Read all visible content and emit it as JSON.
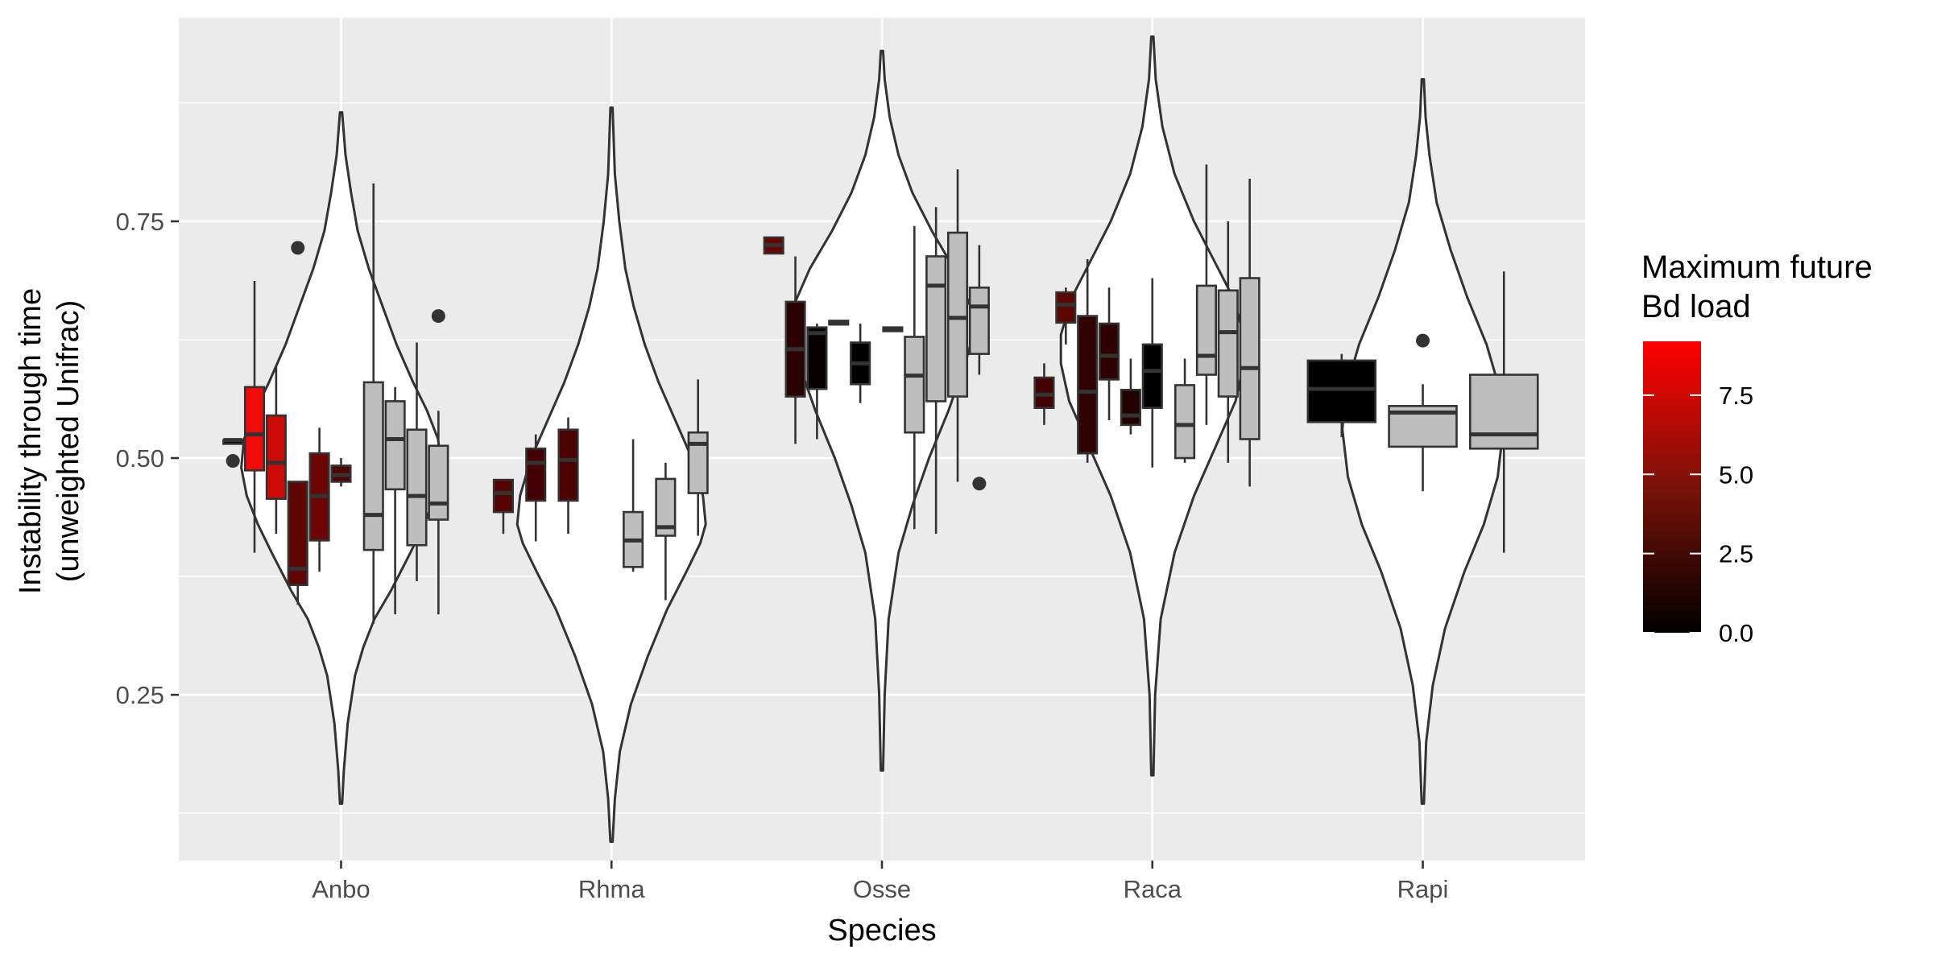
{
  "chart_data": {
    "type": "boxplot-violin",
    "xlabel": "Species",
    "ylabel_lines": [
      "Instability through time",
      "(unweighted Unifrac)"
    ],
    "ylim": [
      0.075,
      0.965
    ],
    "y_ticks": [
      0.25,
      0.5,
      0.75
    ],
    "y_tick_labels": [
      "0.25",
      "0.50",
      "0.75"
    ],
    "y_minor_ticks": [
      0.125,
      0.375,
      0.625,
      0.875
    ],
    "categories": [
      "Anbo",
      "Rhma",
      "Osse",
      "Raca",
      "Rapi"
    ],
    "violins": [
      {
        "species": "Anbo",
        "min": 0.135,
        "max": 0.865,
        "profile": [
          [
            0.135,
            0.002
          ],
          [
            0.17,
            0.005
          ],
          [
            0.22,
            0.012
          ],
          [
            0.27,
            0.025
          ],
          [
            0.3,
            0.04
          ],
          [
            0.33,
            0.06
          ],
          [
            0.36,
            0.09
          ],
          [
            0.4,
            0.125
          ],
          [
            0.43,
            0.15
          ],
          [
            0.46,
            0.17
          ],
          [
            0.49,
            0.18
          ],
          [
            0.52,
            0.175
          ],
          [
            0.55,
            0.155
          ],
          [
            0.58,
            0.13
          ],
          [
            0.62,
            0.1
          ],
          [
            0.66,
            0.075
          ],
          [
            0.7,
            0.05
          ],
          [
            0.74,
            0.03
          ],
          [
            0.78,
            0.018
          ],
          [
            0.82,
            0.008
          ],
          [
            0.865,
            0.002
          ]
        ]
      },
      {
        "species": "Rhma",
        "min": 0.095,
        "max": 0.87,
        "profile": [
          [
            0.095,
            0.002
          ],
          [
            0.14,
            0.006
          ],
          [
            0.19,
            0.015
          ],
          [
            0.24,
            0.035
          ],
          [
            0.29,
            0.065
          ],
          [
            0.34,
            0.1
          ],
          [
            0.38,
            0.135
          ],
          [
            0.41,
            0.16
          ],
          [
            0.43,
            0.17
          ],
          [
            0.46,
            0.165
          ],
          [
            0.5,
            0.145
          ],
          [
            0.54,
            0.115
          ],
          [
            0.58,
            0.085
          ],
          [
            0.62,
            0.06
          ],
          [
            0.66,
            0.04
          ],
          [
            0.7,
            0.025
          ],
          [
            0.75,
            0.014
          ],
          [
            0.8,
            0.006
          ],
          [
            0.87,
            0.002
          ]
        ]
      },
      {
        "species": "Osse",
        "min": 0.17,
        "max": 0.93,
        "profile": [
          [
            0.17,
            0.002
          ],
          [
            0.25,
            0.005
          ],
          [
            0.33,
            0.012
          ],
          [
            0.4,
            0.03
          ],
          [
            0.45,
            0.055
          ],
          [
            0.5,
            0.085
          ],
          [
            0.55,
            0.12
          ],
          [
            0.6,
            0.15
          ],
          [
            0.63,
            0.165
          ],
          [
            0.66,
            0.16
          ],
          [
            0.7,
            0.13
          ],
          [
            0.74,
            0.09
          ],
          [
            0.78,
            0.055
          ],
          [
            0.82,
            0.03
          ],
          [
            0.86,
            0.014
          ],
          [
            0.9,
            0.005
          ],
          [
            0.93,
            0.002
          ]
        ]
      },
      {
        "species": "Raca",
        "min": 0.165,
        "max": 0.945,
        "profile": [
          [
            0.165,
            0.002
          ],
          [
            0.25,
            0.005
          ],
          [
            0.33,
            0.015
          ],
          [
            0.4,
            0.04
          ],
          [
            0.46,
            0.075
          ],
          [
            0.52,
            0.12
          ],
          [
            0.56,
            0.15
          ],
          [
            0.6,
            0.165
          ],
          [
            0.63,
            0.165
          ],
          [
            0.67,
            0.145
          ],
          [
            0.71,
            0.11
          ],
          [
            0.75,
            0.075
          ],
          [
            0.8,
            0.04
          ],
          [
            0.85,
            0.018
          ],
          [
            0.9,
            0.006
          ],
          [
            0.945,
            0.002
          ]
        ]
      },
      {
        "species": "Rapi",
        "min": 0.135,
        "max": 0.9,
        "profile": [
          [
            0.135,
            0.002
          ],
          [
            0.2,
            0.006
          ],
          [
            0.26,
            0.018
          ],
          [
            0.32,
            0.04
          ],
          [
            0.38,
            0.075
          ],
          [
            0.43,
            0.11
          ],
          [
            0.48,
            0.135
          ],
          [
            0.53,
            0.145
          ],
          [
            0.57,
            0.14
          ],
          [
            0.62,
            0.115
          ],
          [
            0.67,
            0.08
          ],
          [
            0.72,
            0.05
          ],
          [
            0.77,
            0.025
          ],
          [
            0.82,
            0.012
          ],
          [
            0.86,
            0.005
          ],
          [
            0.9,
            0.002
          ]
        ]
      }
    ],
    "boxes": [
      {
        "species": "Anbo",
        "x": 0.6,
        "q1": 0.515,
        "median": 0.519,
        "q3": 0.519,
        "lo": 0.515,
        "hi": 0.519,
        "bd": 0.0,
        "outliers": [
          0.497
        ]
      },
      {
        "species": "Anbo",
        "x": 0.68,
        "q1": 0.487,
        "median": 0.525,
        "q3": 0.575,
        "lo": 0.4,
        "hi": 0.687,
        "bd": 8.8,
        "outliers": []
      },
      {
        "species": "Anbo",
        "x": 0.76,
        "q1": 0.457,
        "median": 0.495,
        "q3": 0.545,
        "lo": 0.42,
        "hi": 0.597,
        "bd": 7.4,
        "outliers": []
      },
      {
        "species": "Anbo",
        "x": 0.84,
        "q1": 0.366,
        "median": 0.383,
        "q3": 0.475,
        "lo": 0.345,
        "hi": 0.475,
        "bd": 3.6,
        "outliers": [
          0.722
        ]
      },
      {
        "species": "Anbo",
        "x": 0.92,
        "q1": 0.413,
        "median": 0.46,
        "q3": 0.505,
        "lo": 0.38,
        "hi": 0.532,
        "bd": 4.1,
        "outliers": []
      },
      {
        "species": "Anbo",
        "x": 1.0,
        "q1": 0.475,
        "median": 0.482,
        "q3": 0.492,
        "lo": 0.47,
        "hi": 0.5,
        "bd": 3.0,
        "outliers": []
      },
      {
        "species": "Anbo",
        "x": 1.12,
        "q1": 0.403,
        "median": 0.44,
        "q3": 0.58,
        "lo": 0.325,
        "hi": 0.79,
        "bd": 0.0,
        "outliers": []
      },
      {
        "species": "Anbo",
        "x": 1.2,
        "q1": 0.467,
        "median": 0.52,
        "q3": 0.56,
        "lo": 0.335,
        "hi": 0.575,
        "bd": 0.0,
        "outliers": []
      },
      {
        "species": "Anbo",
        "x": 1.28,
        "q1": 0.408,
        "median": 0.46,
        "q3": 0.53,
        "lo": 0.37,
        "hi": 0.622,
        "bd": 0.0,
        "outliers": []
      },
      {
        "species": "Anbo",
        "x": 1.36,
        "q1": 0.435,
        "median": 0.452,
        "q3": 0.513,
        "lo": 0.335,
        "hi": 0.55,
        "bd": 0.0,
        "outliers": [
          0.65
        ]
      },
      {
        "species": "Rhma",
        "x": 1.6,
        "q1": 0.443,
        "median": 0.463,
        "q3": 0.477,
        "lo": 0.42,
        "hi": 0.477,
        "bd": 3.2,
        "outliers": []
      },
      {
        "species": "Rhma",
        "x": 1.72,
        "q1": 0.455,
        "median": 0.495,
        "q3": 0.51,
        "lo": 0.412,
        "hi": 0.525,
        "bd": 2.6,
        "outliers": []
      },
      {
        "species": "Rhma",
        "x": 1.84,
        "q1": 0.455,
        "median": 0.498,
        "q3": 0.53,
        "lo": 0.42,
        "hi": 0.543,
        "bd": 2.9,
        "outliers": []
      },
      {
        "species": "Rhma",
        "x": 2.08,
        "q1": 0.385,
        "median": 0.413,
        "q3": 0.443,
        "lo": 0.38,
        "hi": 0.52,
        "bd": 0.0,
        "outliers": []
      },
      {
        "species": "Rhma",
        "x": 2.2,
        "q1": 0.418,
        "median": 0.427,
        "q3": 0.478,
        "lo": 0.35,
        "hi": 0.495,
        "bd": 0.0,
        "outliers": []
      },
      {
        "species": "Rhma",
        "x": 2.32,
        "q1": 0.463,
        "median": 0.515,
        "q3": 0.527,
        "lo": 0.418,
        "hi": 0.583,
        "bd": 0.0,
        "outliers": []
      },
      {
        "species": "Osse",
        "x": 2.6,
        "q1": 0.716,
        "median": 0.725,
        "q3": 0.733,
        "lo": 0.716,
        "hi": 0.733,
        "bd": 3.9,
        "outliers": []
      },
      {
        "species": "Osse",
        "x": 2.68,
        "q1": 0.565,
        "median": 0.615,
        "q3": 0.665,
        "lo": 0.515,
        "hi": 0.713,
        "bd": 1.7,
        "outliers": []
      },
      {
        "species": "Osse",
        "x": 2.76,
        "q1": 0.573,
        "median": 0.632,
        "q3": 0.638,
        "lo": 0.52,
        "hi": 0.642,
        "bd": 0.3,
        "outliers": []
      },
      {
        "species": "Osse",
        "x": 2.84,
        "q1": 0.641,
        "median": 0.643,
        "q3": 0.645,
        "lo": 0.641,
        "hi": 0.645,
        "bd": 0.0,
        "outliers": []
      },
      {
        "species": "Osse",
        "x": 2.92,
        "q1": 0.578,
        "median": 0.6,
        "q3": 0.622,
        "lo": 0.558,
        "hi": 0.642,
        "bd": 0.0,
        "outliers": []
      },
      {
        "species": "Osse",
        "x": 3.04,
        "q1": 0.634,
        "median": 0.636,
        "q3": 0.638,
        "lo": 0.634,
        "hi": 0.638,
        "bd": 0.0,
        "outliers": []
      },
      {
        "species": "Osse",
        "x": 3.12,
        "q1": 0.527,
        "median": 0.587,
        "q3": 0.628,
        "lo": 0.425,
        "hi": 0.745,
        "bd": 0.0,
        "outliers": []
      },
      {
        "species": "Osse",
        "x": 3.2,
        "q1": 0.56,
        "median": 0.682,
        "q3": 0.713,
        "lo": 0.42,
        "hi": 0.765,
        "bd": 0.0,
        "outliers": []
      },
      {
        "species": "Osse",
        "x": 3.28,
        "q1": 0.565,
        "median": 0.648,
        "q3": 0.738,
        "lo": 0.475,
        "hi": 0.805,
        "bd": 0.0,
        "outliers": []
      },
      {
        "species": "Osse",
        "x": 3.36,
        "q1": 0.61,
        "median": 0.66,
        "q3": 0.68,
        "lo": 0.588,
        "hi": 0.725,
        "bd": 0.0,
        "outliers": [
          0.473
        ]
      },
      {
        "species": "Raca",
        "x": 3.6,
        "q1": 0.553,
        "median": 0.567,
        "q3": 0.585,
        "lo": 0.535,
        "hi": 0.6,
        "bd": 2.6,
        "outliers": []
      },
      {
        "species": "Raca",
        "x": 3.68,
        "q1": 0.643,
        "median": 0.662,
        "q3": 0.675,
        "lo": 0.62,
        "hi": 0.68,
        "bd": 3.5,
        "outliers": []
      },
      {
        "species": "Raca",
        "x": 3.76,
        "q1": 0.505,
        "median": 0.57,
        "q3": 0.65,
        "lo": 0.495,
        "hi": 0.71,
        "bd": 1.9,
        "outliers": []
      },
      {
        "species": "Raca",
        "x": 3.84,
        "q1": 0.583,
        "median": 0.608,
        "q3": 0.642,
        "lo": 0.54,
        "hi": 0.68,
        "bd": 1.8,
        "outliers": []
      },
      {
        "species": "Raca",
        "x": 3.92,
        "q1": 0.535,
        "median": 0.545,
        "q3": 0.572,
        "lo": 0.525,
        "hi": 0.605,
        "bd": 1.3,
        "outliers": []
      },
      {
        "species": "Raca",
        "x": 4.0,
        "q1": 0.553,
        "median": 0.592,
        "q3": 0.62,
        "lo": 0.49,
        "hi": 0.69,
        "bd": 0.0,
        "outliers": []
      },
      {
        "species": "Raca",
        "x": 4.12,
        "q1": 0.5,
        "median": 0.535,
        "q3": 0.577,
        "lo": 0.495,
        "hi": 0.605,
        "bd": 0.0,
        "outliers": []
      },
      {
        "species": "Raca",
        "x": 4.2,
        "q1": 0.588,
        "median": 0.608,
        "q3": 0.682,
        "lo": 0.535,
        "hi": 0.81,
        "bd": 0.0,
        "outliers": []
      },
      {
        "species": "Raca",
        "x": 4.28,
        "q1": 0.565,
        "median": 0.633,
        "q3": 0.677,
        "lo": 0.495,
        "hi": 0.75,
        "bd": 0.0,
        "outliers": []
      },
      {
        "species": "Raca",
        "x": 4.36,
        "q1": 0.52,
        "median": 0.595,
        "q3": 0.69,
        "lo": 0.47,
        "hi": 0.795,
        "bd": 0.0,
        "outliers": []
      },
      {
        "species": "Rapi",
        "x": 4.7,
        "q1": 0.538,
        "median": 0.573,
        "q3": 0.603,
        "lo": 0.522,
        "hi": 0.61,
        "bd": 0.0,
        "outliers": []
      },
      {
        "species": "Rapi",
        "x": 5.0,
        "q1": 0.512,
        "median": 0.548,
        "q3": 0.555,
        "lo": 0.465,
        "hi": 0.578,
        "bd": 0.0,
        "outliers": [
          0.624
        ]
      },
      {
        "species": "Rapi",
        "x": 5.3,
        "q1": 0.51,
        "median": 0.525,
        "q3": 0.588,
        "lo": 0.4,
        "hi": 0.697,
        "bd": 0.0,
        "outliers": []
      }
    ],
    "legend": {
      "title_lines": [
        "Maximum future",
        "Bd load"
      ],
      "position": "right",
      "range": [
        0,
        9.2
      ],
      "ticks": [
        0,
        2.5,
        5.0,
        7.5
      ],
      "tick_labels": [
        "0.0",
        "2.5",
        "5.0",
        "7.5"
      ],
      "low_color": "#000000",
      "high_color": "#ff0000",
      "na_color": "#bebebe"
    },
    "grid": true,
    "panel_background": "#ebebeb"
  }
}
